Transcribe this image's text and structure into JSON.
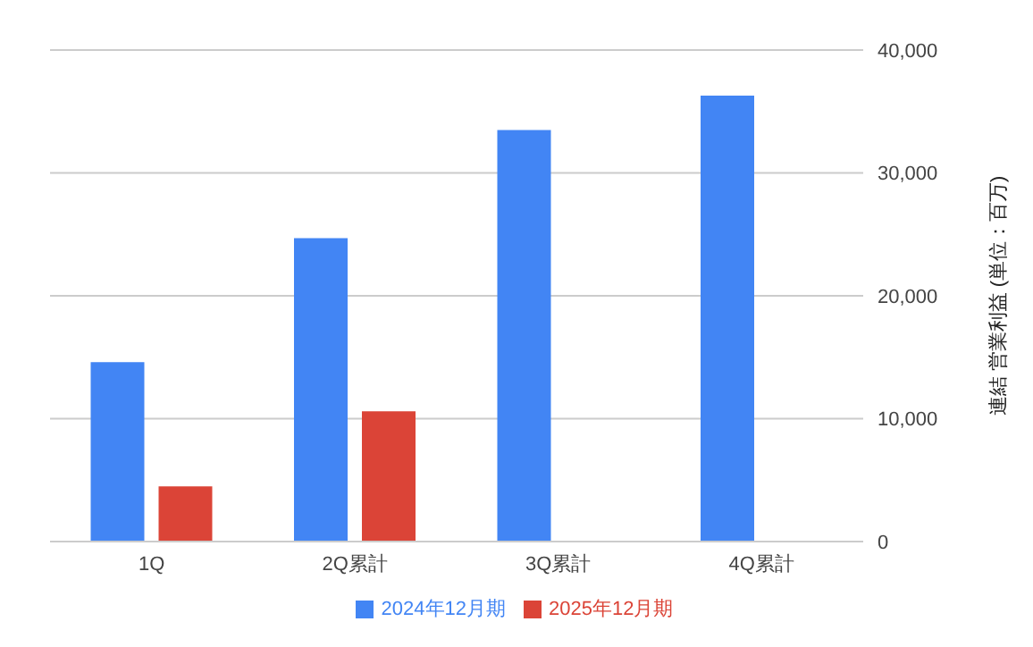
{
  "chart_data": {
    "type": "bar",
    "categories": [
      "1Q",
      "2Q累計",
      "3Q累計",
      "4Q累計"
    ],
    "series": [
      {
        "name": "2024年12月期",
        "color": "#4285f4",
        "values": [
          14600,
          24700,
          33500,
          36300
        ]
      },
      {
        "name": "2025年12月期",
        "color": "#db4437",
        "values": [
          4500,
          10600,
          null,
          null
        ]
      }
    ],
    "ylabel": "連結 営業利益 (単位：百万)",
    "ylim": [
      0,
      40000
    ],
    "yticks": [
      0,
      {
        "value": 10000,
        "label": "10,000"
      },
      {
        "value": 20000,
        "label": "20,000"
      },
      {
        "value": 30000,
        "label": "30,000"
      },
      {
        "value": 40000,
        "label": "40,000"
      }
    ],
    "grid": "y",
    "legend": "bottom"
  }
}
